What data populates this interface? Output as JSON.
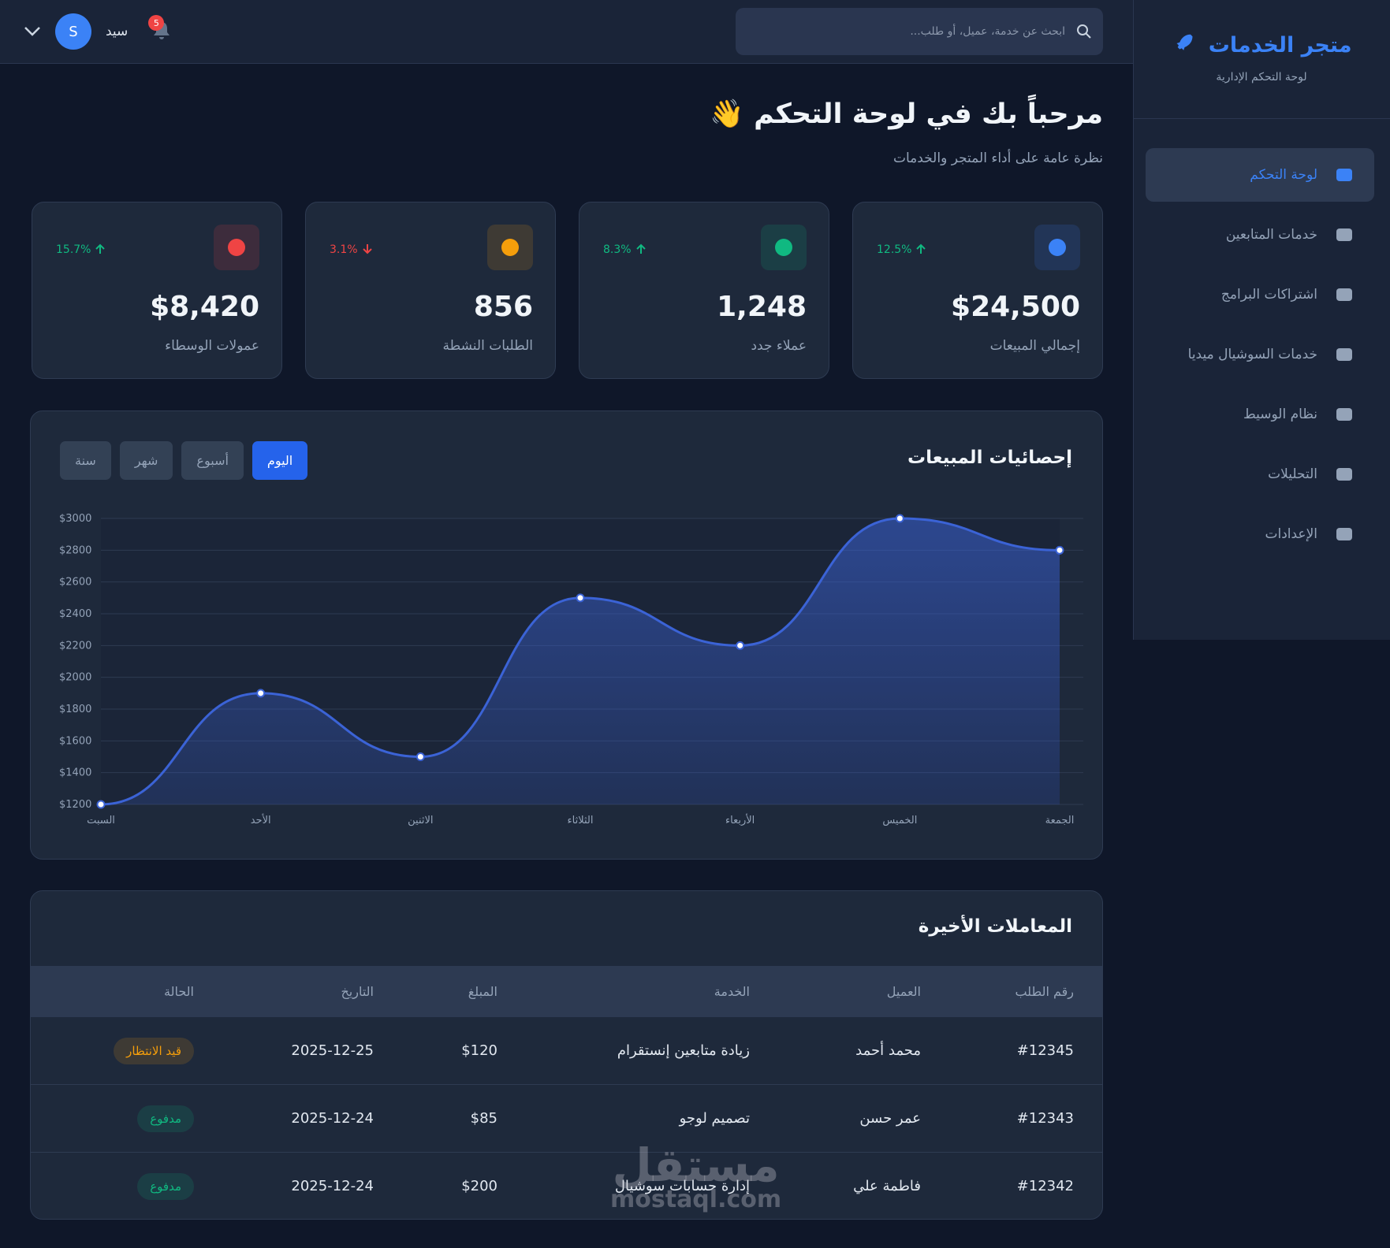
{
  "sidebar": {
    "brand": "متجر الخدمات",
    "subtitle": "لوحة التحكم الإدارية",
    "nav": [
      "لوحة التحكم",
      "خدمات المتابعين",
      "اشتراكات البرامج",
      "خدمات السوشيال ميديا",
      "نظام الوسيط",
      "التحليلات",
      "الإعدادات"
    ],
    "active": 0
  },
  "header": {
    "search_placeholder": "ابحث عن خدمة، عميل، أو طلب...",
    "user_name": "سيد",
    "avatar": "S",
    "notifications": "5"
  },
  "welcome": {
    "title": "مرحباً بك في لوحة التحكم 👋",
    "subtitle": "نظرة عامة على أداء المتجر والخدمات"
  },
  "stats": [
    {
      "label": "إجمالي المبيعات",
      "value": "$24,500",
      "change": "12.5%",
      "trend": "up",
      "color": "#3b82f6"
    },
    {
      "label": "عملاء جدد",
      "value": "1,248",
      "change": "8.3%",
      "trend": "up",
      "color": "#10b981"
    },
    {
      "label": "الطلبات النشطة",
      "value": "856",
      "change": "3.1%",
      "trend": "down",
      "color": "#f59e0b"
    },
    {
      "label": "عمولات الوسطاء",
      "value": "$8,420",
      "change": "15.7%",
      "trend": "up",
      "color": "#ef4444"
    }
  ],
  "chart_data": {
    "type": "line",
    "title": "إحصائيات المبيعات",
    "periods": [
      "اليوم",
      "أسبوع",
      "شهر",
      "سنة"
    ],
    "active_period": 0,
    "categories": [
      "السبت",
      "الأحد",
      "الاثنين",
      "الثلاثاء",
      "الأربعاء",
      "الخميس",
      "الجمعة"
    ],
    "values": [
      1200,
      1900,
      1500,
      2500,
      2200,
      3000,
      2800
    ],
    "color": "#3b63d6",
    "ylim": [
      1200,
      3000
    ],
    "yticks": [
      {
        "value": 1200,
        "label": "$1200"
      },
      {
        "value": 1400,
        "label": "$1400"
      },
      {
        "value": 1600,
        "label": "$1600"
      },
      {
        "value": 1800,
        "label": "$1800"
      },
      {
        "value": 2000,
        "label": "$2000"
      },
      {
        "value": 2200,
        "label": "$2200"
      },
      {
        "value": 2400,
        "label": "$2400"
      },
      {
        "value": 2600,
        "label": "$2600"
      },
      {
        "value": 2800,
        "label": "$2800"
      },
      {
        "value": 3000,
        "label": "$3000"
      }
    ],
    "grid": true
  },
  "table": {
    "title": "المعاملات الأخيرة",
    "headers": [
      "رقم الطلب",
      "العميل",
      "الخدمة",
      "المبلغ",
      "التاريخ",
      "الحالة"
    ],
    "rows": [
      [
        "#12345",
        "محمد أحمد",
        "زيادة متابعين إنستقرام",
        "$120",
        "2025-12-25",
        "قيد الانتظار"
      ],
      [
        "#12343",
        "عمر حسن",
        "تصميم لوجو",
        "$85",
        "2025-12-24",
        "مدفوع"
      ],
      [
        "#12342",
        "فاطمة علي",
        "إدارة حسابات سوشيال",
        "$200",
        "2025-12-24",
        "مدفوع"
      ]
    ],
    "status_colors": [
      "#f59e0b",
      "#10b981",
      "#10b981"
    ]
  },
  "watermark": [
    "مستقل",
    "mostaql.com"
  ]
}
